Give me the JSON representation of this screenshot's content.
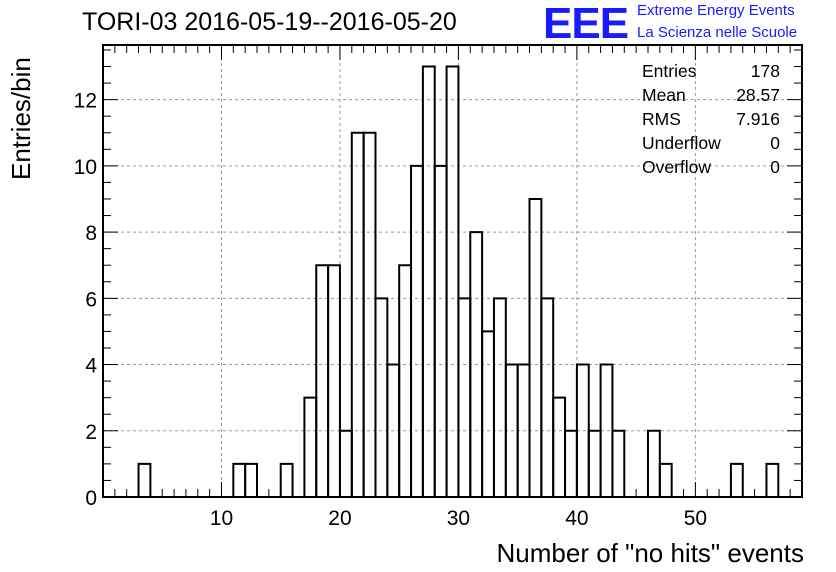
{
  "chart_data": {
    "type": "bar",
    "histogram": true,
    "title": "TORI-03 2016-05-19--2016-05-20",
    "xlabel": "Number of \"no hits\" events",
    "ylabel": "Entries/bin",
    "xlim": [
      0,
      59
    ],
    "ylim": [
      0,
      13.65
    ],
    "grid": true,
    "x_ticks": [
      10,
      20,
      30,
      40,
      50
    ],
    "y_ticks": [
      0,
      2,
      4,
      6,
      8,
      10,
      12
    ],
    "bin_width": 1,
    "bins": [
      3,
      11,
      12,
      15,
      17,
      18,
      19,
      20,
      21,
      22,
      23,
      24,
      25,
      26,
      27,
      28,
      29,
      30,
      31,
      32,
      33,
      34,
      35,
      36,
      37,
      38,
      39,
      40,
      41,
      42,
      43,
      46,
      47,
      53,
      56
    ],
    "values": [
      1,
      1,
      1,
      1,
      3,
      7,
      7,
      2,
      11,
      11,
      6,
      4,
      7,
      10,
      13,
      10,
      13,
      6,
      8,
      5,
      6,
      4,
      4,
      9,
      6,
      3,
      2,
      4,
      2,
      4,
      2,
      2,
      1,
      1,
      1
    ]
  },
  "stats": {
    "rows": [
      {
        "label": "Entries",
        "value": "178"
      },
      {
        "label": "Mean",
        "value": "28.57"
      },
      {
        "label": "RMS",
        "value": "7.916"
      },
      {
        "label": "Underflow",
        "value": "0"
      },
      {
        "label": "Overflow",
        "value": "0"
      }
    ]
  },
  "logo": {
    "text": "EEE",
    "line1": "Extreme Energy Events",
    "line2": "La Scienza nelle Scuole"
  },
  "colors": {
    "logo": "#1a1aff",
    "line": "#000000",
    "grid": "#9a9a9a"
  }
}
